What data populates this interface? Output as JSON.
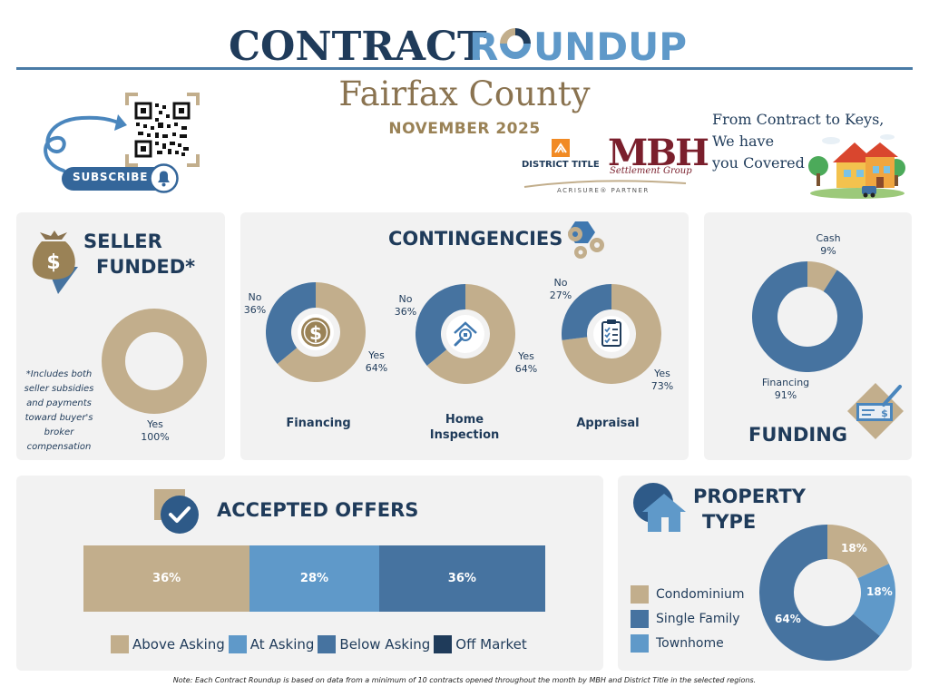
{
  "header": {
    "title_part1": "CONTRACT",
    "title_part2": "R",
    "title_part3": "UNDUP",
    "county": "Fairfax County",
    "month": "NOVEMBER 2025",
    "tagline_lines": [
      "From Contract to Keys,",
      "We have",
      "you Covered"
    ]
  },
  "subscribe": {
    "label": "SUBSCRIBE"
  },
  "logos": {
    "district_title": "DISTRICT TITLE",
    "mbh": "MBH",
    "mbh_sub": "Settlement Group",
    "partner": "ACRISURE® PARTNER"
  },
  "seller_funded": {
    "title_line1": "SELLER",
    "title_line2": "FUNDED*",
    "note_lines": [
      "*Includes both",
      "seller subsidies",
      "and payments",
      "toward buyer's",
      "broker",
      "compensation"
    ]
  },
  "contingencies": {
    "title": "CONTINGENCIES"
  },
  "funding": {
    "title": "FUNDING"
  },
  "accepted_offers": {
    "title": "ACCEPTED OFFERS"
  },
  "property_type": {
    "title_line1": "PROPERTY",
    "title_line2": "TYPE"
  },
  "footnote": "Note: Each Contract Roundup is based on data from a minimum of 10 contracts opened throughout the month by MBH and District Title in the selected regions.",
  "colors": {
    "tan": "#c2ae8c",
    "steel": "#4673a0",
    "light_blue": "#5f99c9",
    "navy": "#1f3b5a",
    "accent_blue": "#3f78b0"
  },
  "chart_data": [
    {
      "type": "pie",
      "title": "SELLER FUNDED*",
      "slices": [
        {
          "label": "Yes",
          "value": 100,
          "display": "100%"
        }
      ]
    },
    {
      "type": "pie",
      "title": "Financing",
      "slices": [
        {
          "label": "Yes",
          "value": 64,
          "display": "64%"
        },
        {
          "label": "No",
          "value": 36,
          "display": "36%"
        }
      ]
    },
    {
      "type": "pie",
      "title": "Home Inspection",
      "slices": [
        {
          "label": "Yes",
          "value": 64,
          "display": "64%"
        },
        {
          "label": "No",
          "value": 36,
          "display": "36%"
        }
      ]
    },
    {
      "type": "pie",
      "title": "Appraisal",
      "slices": [
        {
          "label": "Yes",
          "value": 73,
          "display": "73%"
        },
        {
          "label": "No",
          "value": 27,
          "display": "27%"
        }
      ]
    },
    {
      "type": "pie",
      "title": "FUNDING",
      "slices": [
        {
          "label": "Cash",
          "value": 9,
          "display": "9%"
        },
        {
          "label": "Financing",
          "value": 91,
          "display": "91%"
        }
      ]
    },
    {
      "type": "bar",
      "title": "ACCEPTED OFFERS",
      "stacked": true,
      "series": [
        {
          "name": "Above Asking",
          "value": 36,
          "display": "36%"
        },
        {
          "name": "At Asking",
          "value": 28,
          "display": "28%"
        },
        {
          "name": "Below Asking",
          "value": 36,
          "display": "36%"
        },
        {
          "name": "Off Market",
          "value": 0,
          "display": ""
        }
      ]
    },
    {
      "type": "pie",
      "title": "PROPERTY TYPE",
      "slices": [
        {
          "label": "Condominium",
          "value": 18,
          "display": "18%"
        },
        {
          "label": "Townhome",
          "value": 18,
          "display": "18%"
        },
        {
          "label": "Single Family",
          "value": 64,
          "display": "64%"
        }
      ],
      "legend": [
        "Condominium",
        "Single Family",
        "Townhome"
      ]
    }
  ]
}
